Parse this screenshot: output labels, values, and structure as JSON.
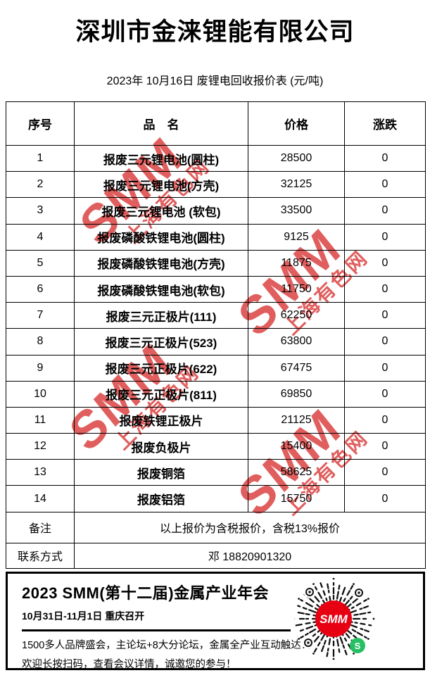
{
  "company": "深圳市金涞锂能有限公司",
  "subtitle": "2023年 10月16日 废锂电回收报价表 (元/吨)",
  "table": {
    "headers": {
      "no": "序号",
      "name": "品　名",
      "price": "价格",
      "change": "涨跌"
    },
    "rows": [
      {
        "no": "1",
        "name": "报废三元锂电池(圆柱)",
        "price": "28500",
        "change": "0"
      },
      {
        "no": "2",
        "name": "报废三元锂电池(方壳)",
        "price": "32125",
        "change": "0"
      },
      {
        "no": "3",
        "name": "报废三元锂电池 (软包)",
        "price": "33500",
        "change": "0"
      },
      {
        "no": "4",
        "name": "报废磷酸铁锂电池(圆柱)",
        "price": "9125",
        "change": "0"
      },
      {
        "no": "5",
        "name": "报废磷酸铁锂电池(方壳)",
        "price": "11875",
        "change": "0"
      },
      {
        "no": "6",
        "name": "报废磷酸铁锂电池(软包)",
        "price": "11750",
        "change": "0"
      },
      {
        "no": "7",
        "name": "报废三元正极片(111)",
        "price": "62250",
        "change": "0"
      },
      {
        "no": "8",
        "name": "报废三元正极片(523)",
        "price": "63800",
        "change": "0"
      },
      {
        "no": "9",
        "name": "报废三元正极片(622)",
        "price": "67475",
        "change": "0"
      },
      {
        "no": "10",
        "name": "报废三元正极片(811)",
        "price": "69850",
        "change": "0"
      },
      {
        "no": "11",
        "name": "报废铁锂正极片",
        "price": "21125",
        "change": "0"
      },
      {
        "no": "12",
        "name": "报废负极片",
        "price": "15400",
        "change": "0"
      },
      {
        "no": "13",
        "name": "报废铜箔",
        "price": "58625",
        "change": "0"
      },
      {
        "no": "14",
        "name": "报废铝箔",
        "price": "15750",
        "change": "0"
      }
    ],
    "remark_label": "备注",
    "remark": "以上报价为含税报价，含税13%报价",
    "contact_label": "联系方式",
    "contact": "邓 18820901320"
  },
  "watermark": {
    "main": "SMM",
    "sub": "上海有色网"
  },
  "footer": {
    "title": "2023 SMM(第十二届)金属产业年会",
    "date_line": "10月31日-11月1日  重庆召开",
    "line1": "1500多人品牌盛会，主论坛+8大分论坛，金属全产业互动触达！",
    "line2": "欢迎长按扫码，查看会议详情，诚邀您的参与！",
    "qr_center_label": "SMM",
    "mini_program_glyph": "S"
  },
  "colors": {
    "watermark_red": "#d93a3a",
    "qr_logo_red": "#e60012",
    "mini_program_green": "#26bf63",
    "ink": "#000000"
  }
}
